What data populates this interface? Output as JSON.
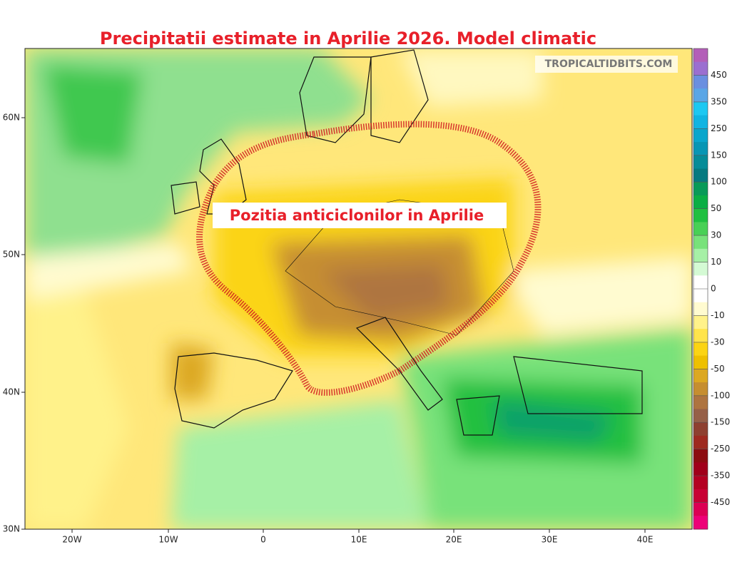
{
  "title": "Precipitatii estimate in Aprilie 2026. Model climatic",
  "annotation": "Pozitia anticiclonilor in Aprilie",
  "watermark": "TROPICALTIDBITS.COM",
  "latitude_labels": [
    "60N",
    "50N",
    "40N",
    "30N"
  ],
  "longitude_labels": [
    "20W",
    "10W",
    "0",
    "10E",
    "20E",
    "30E",
    "40E"
  ],
  "colorbar": {
    "labels": [
      450,
      350,
      250,
      150,
      100,
      50,
      30,
      10,
      0,
      -10,
      -30,
      -50,
      -100,
      -150,
      -250,
      -350,
      -450
    ],
    "colors": [
      "#b35fb8",
      "#9b6fd0",
      "#6a8fe0",
      "#5aa6e6",
      "#1cc8f2",
      "#10b4e2",
      "#0aa6cc",
      "#0896b4",
      "#068c98",
      "#067a80",
      "#089a58",
      "#0aae44",
      "#20c040",
      "#48d055",
      "#78e27a",
      "#a6f0a6",
      "#d4fad4",
      "#ffffff",
      "#ffffff",
      "#fffbd0",
      "#fff28a",
      "#ffe44c",
      "#fbd414",
      "#eec000",
      "#dca822",
      "#c68e30",
      "#ae7440",
      "#966048",
      "#8e4030",
      "#9e2a20",
      "#8c0c10",
      "#a0001a",
      "#b40022",
      "#c80034",
      "#dc0054",
      "#ee0078"
    ]
  }
}
